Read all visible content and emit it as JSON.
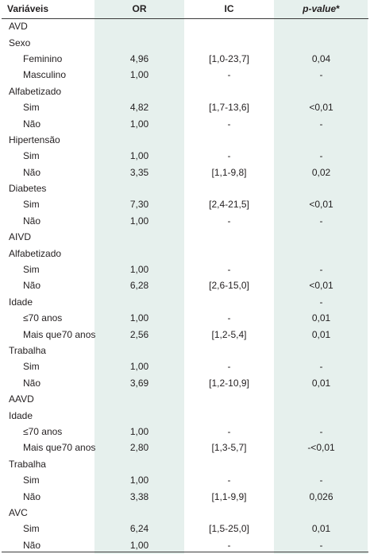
{
  "headers": {
    "variaveis": "Variáveis",
    "or": "OR",
    "ic": "IC",
    "pvalue_italic": "p-value",
    "pvalue_mark": "*"
  },
  "rows": [
    {
      "label": "AVD",
      "indent": false,
      "or": "",
      "ic": "",
      "p": ""
    },
    {
      "label": "Sexo",
      "indent": false,
      "or": "",
      "ic": "",
      "p": ""
    },
    {
      "label": "Feminino",
      "indent": true,
      "or": "4,96",
      "ic": "[1,0-23,7]",
      "p": "0,04"
    },
    {
      "label": "Masculino",
      "indent": true,
      "or": "1,00",
      "ic": "-",
      "p": "-"
    },
    {
      "label": "Alfabetizado",
      "indent": false,
      "or": "",
      "ic": "",
      "p": ""
    },
    {
      "label": "Sim",
      "indent": true,
      "or": "4,82",
      "ic": "[1,7-13,6]",
      "p": "<0,01"
    },
    {
      "label": "Não",
      "indent": true,
      "or": "1,00",
      "ic": "-",
      "p": "-"
    },
    {
      "label": "Hipertensão",
      "indent": false,
      "or": "",
      "ic": "",
      "p": ""
    },
    {
      "label": "Sim",
      "indent": true,
      "or": "1,00",
      "ic": "-",
      "p": "-"
    },
    {
      "label": "Não",
      "indent": true,
      "or": "3,35",
      "ic": "[1,1-9,8]",
      "p": "0,02"
    },
    {
      "label": "Diabetes",
      "indent": false,
      "or": "",
      "ic": "",
      "p": ""
    },
    {
      "label": "Sim",
      "indent": true,
      "or": "7,30",
      "ic": "[2,4-21,5]",
      "p": "<0,01"
    },
    {
      "label": "Não",
      "indent": true,
      "or": "1,00",
      "ic": "-",
      "p": "-"
    },
    {
      "label": "AIVD",
      "indent": false,
      "or": "",
      "ic": "",
      "p": ""
    },
    {
      "label": "Alfabetizado",
      "indent": false,
      "or": "",
      "ic": "",
      "p": ""
    },
    {
      "label": "Sim",
      "indent": true,
      "or": "1,00",
      "ic": "-",
      "p": "-"
    },
    {
      "label": "Não",
      "indent": true,
      "or": "6,28",
      "ic": "[2,6-15,0]",
      "p": "<0,01"
    },
    {
      "label": "Idade",
      "indent": false,
      "or": "",
      "ic": "",
      "p": "-"
    },
    {
      "label": "≤70 anos",
      "indent": true,
      "or": "1,00",
      "ic": "-",
      "p": "0,01"
    },
    {
      "label": "Mais que70 anos",
      "indent": true,
      "or": "2,56",
      "ic": "[1,2-5,4]",
      "p": "0,01"
    },
    {
      "label": "Trabalha",
      "indent": false,
      "or": "",
      "ic": "",
      "p": ""
    },
    {
      "label": "Sim",
      "indent": true,
      "or": "1,00",
      "ic": "-",
      "p": "-"
    },
    {
      "label": "Não",
      "indent": true,
      "or": "3,69",
      "ic": "[1,2-10,9]",
      "p": "0,01"
    },
    {
      "label": "AAVD",
      "indent": false,
      "or": "",
      "ic": "",
      "p": ""
    },
    {
      "label": "Idade",
      "indent": false,
      "or": "",
      "ic": "",
      "p": ""
    },
    {
      "label": "≤70 anos",
      "indent": true,
      "or": "1,00",
      "ic": "-",
      "p": "-"
    },
    {
      "label": "Mais que70 anos",
      "indent": true,
      "or": "2,80",
      "ic": "[1,3-5,7]",
      "p": "-<0,01"
    },
    {
      "label": "Trabalha",
      "indent": false,
      "or": "",
      "ic": "",
      "p": ""
    },
    {
      "label": "Sim",
      "indent": true,
      "or": "1,00",
      "ic": "-",
      "p": "-"
    },
    {
      "label": "Não",
      "indent": true,
      "or": "3,38",
      "ic": "[1,1-9,9]",
      "p": "0,026"
    },
    {
      "label": "AVC",
      "indent": false,
      "or": "",
      "ic": "",
      "p": ""
    },
    {
      "label": "Sim",
      "indent": true,
      "or": "6,24",
      "ic": "[1,5-25,0]",
      "p": "0,01"
    },
    {
      "label": "Não",
      "indent": true,
      "or": "1,00",
      "ic": "-",
      "p": "-"
    }
  ]
}
